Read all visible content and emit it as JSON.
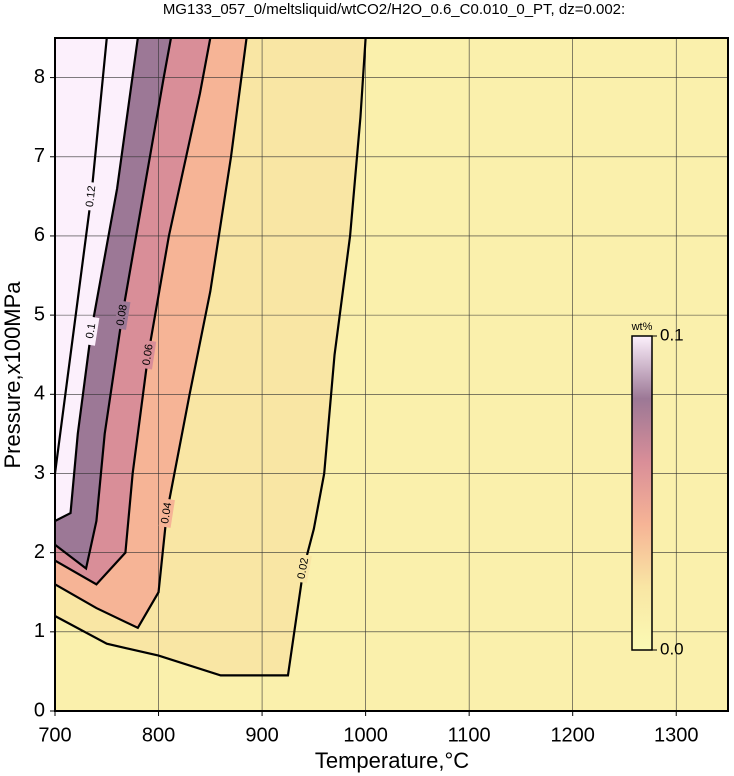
{
  "chart_data": {
    "type": "contour",
    "title": "MG133_057_0/meltsliquid/wtCO2/H2O_0.6_C0.010_0_PT, dz=0.002:",
    "x_label": "Temperature,°C",
    "y_label": "Pressure,x100MPa",
    "xlim": [
      700,
      1350
    ],
    "ylim": [
      0,
      8.5
    ],
    "xticks": [
      700,
      800,
      900,
      1000,
      1100,
      1200,
      1300
    ],
    "yticks": [
      0,
      1,
      2,
      3,
      4,
      5,
      6,
      7,
      8
    ],
    "grid": true,
    "colorbar": {
      "label": "wt%",
      "lim": [
        0,
        0.1
      ],
      "ticks": [
        {
          "value": 0,
          "label": "0.0"
        },
        0.1
      ],
      "colormap": [
        "#fafab4",
        "#f9e6a4",
        "#f6b496",
        "#d98e98",
        "#9c7896",
        "#fcf0fc"
      ]
    },
    "contours": [
      {
        "level": 0.02,
        "x": [
          700,
          750,
          800,
          860,
          925,
          930,
          940,
          950,
          960,
          970,
          985,
          995,
          1000
        ],
        "y": [
          1.2,
          0.85,
          0.7,
          0.45,
          0.45,
          0.9,
          1.8,
          2.3,
          3,
          4.5,
          6,
          7.5,
          8.5
        ]
      },
      {
        "level": 0.04,
        "x": [
          700,
          740,
          780,
          800,
          808,
          830,
          850,
          870,
          885
        ],
        "y": [
          1.6,
          1.3,
          1.05,
          1.5,
          2.5,
          4,
          5.3,
          7,
          8.5
        ]
      },
      {
        "level": 0.06,
        "x": [
          700,
          740,
          768,
          775,
          790,
          810,
          840,
          850
        ],
        "y": [
          1.9,
          1.6,
          2,
          3,
          4.5,
          6,
          7.8,
          8.5
        ]
      },
      {
        "level": 0.08,
        "x": [
          700,
          730,
          740,
          748,
          765,
          785,
          805,
          812
        ],
        "y": [
          2.1,
          1.8,
          2.4,
          3.5,
          5,
          6.5,
          8,
          8.5
        ]
      },
      {
        "level": 0.1,
        "x": [
          700,
          715,
          722,
          735,
          760,
          780
        ],
        "y": [
          2.4,
          2.5,
          3.5,
          4.8,
          6.6,
          8.5
        ]
      },
      {
        "level": 0.12,
        "x": [
          700,
          715,
          735,
          750
        ],
        "y": [
          3,
          4.5,
          6.5,
          8.5
        ]
      }
    ]
  }
}
